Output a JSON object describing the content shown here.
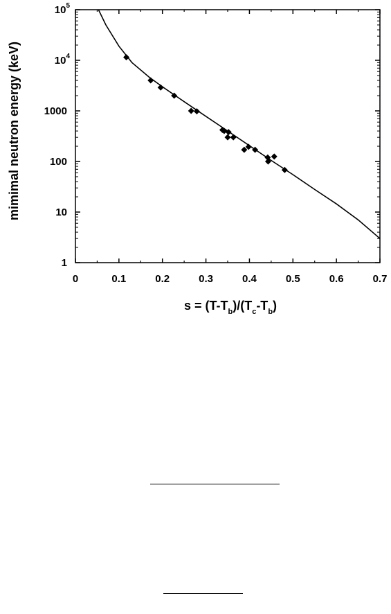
{
  "chart_data": {
    "type": "scatter",
    "xlabel": "s = (T-T_b)/(T_c-T_b)",
    "ylabel": "mimimal neutron energy (keV)",
    "xlim": [
      0,
      0.7
    ],
    "ylim": [
      1,
      100000
    ],
    "yscale": "log",
    "x_ticks": [
      "0",
      "0.1",
      "0.2",
      "0.3",
      "0.4",
      "0.5",
      "0.6",
      "0.7"
    ],
    "y_ticks": [
      "1",
      "10",
      "100",
      "1000",
      "10^4",
      "10^5"
    ],
    "grid": false,
    "series": [
      {
        "type": "scatter",
        "marker": "diamond",
        "points": [
          [
            0.117,
            11500
          ],
          [
            0.173,
            4000
          ],
          [
            0.196,
            2900
          ],
          [
            0.227,
            2000
          ],
          [
            0.266,
            1000
          ],
          [
            0.279,
            980
          ],
          [
            0.338,
            420
          ],
          [
            0.342,
            400
          ],
          [
            0.35,
            300
          ],
          [
            0.352,
            380
          ],
          [
            0.363,
            300
          ],
          [
            0.388,
            170
          ],
          [
            0.398,
            195
          ],
          [
            0.413,
            170
          ],
          [
            0.442,
            120
          ],
          [
            0.443,
            100
          ],
          [
            0.457,
            125
          ],
          [
            0.481,
            68
          ]
        ]
      },
      {
        "type": "line",
        "points": [
          [
            0.053,
            100000
          ],
          [
            0.07,
            50000
          ],
          [
            0.1,
            19000
          ],
          [
            0.13,
            9000
          ],
          [
            0.17,
            4600
          ],
          [
            0.2,
            3000
          ],
          [
            0.25,
            1520
          ],
          [
            0.3,
            780
          ],
          [
            0.35,
            400
          ],
          [
            0.4,
            205
          ],
          [
            0.45,
            105
          ],
          [
            0.5,
            55
          ],
          [
            0.55,
            28
          ],
          [
            0.6,
            14.5
          ],
          [
            0.65,
            7
          ],
          [
            0.7,
            3
          ]
        ]
      }
    ]
  },
  "y_tick_text": [
    {
      "base": "1",
      "exp": ""
    },
    {
      "base": "10",
      "exp": ""
    },
    {
      "base": "100",
      "exp": ""
    },
    {
      "base": "1000",
      "exp": ""
    },
    {
      "base": "10",
      "exp": "4"
    },
    {
      "base": "10",
      "exp": "5"
    }
  ],
  "xlabel_parts": {
    "a": "s = (T-T",
    "b": "b",
    "c": ")/(T",
    "d": "c",
    "e": "-T",
    "f": "b",
    "g": ")"
  },
  "ylabel_text": "mimimal neutron energy (keV)"
}
